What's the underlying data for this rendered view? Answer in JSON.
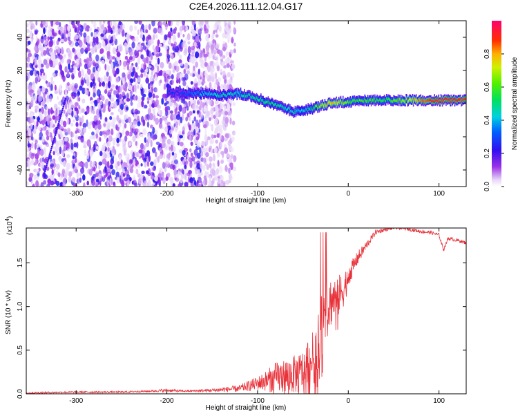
{
  "title": "C2E4.2026.111.12.04.G17",
  "chart_data": [
    {
      "type": "heatmap",
      "xlabel": "Height of straight line (km)",
      "ylabel": "Frequency (Hz)",
      "xlim": [
        -355,
        130
      ],
      "ylim": [
        -50,
        50
      ],
      "xticks": [
        -300,
        -200,
        -100,
        0,
        100
      ],
      "xtick_labels": [
        "-300",
        "-200",
        "-100",
        "0",
        "100"
      ],
      "yticks": [
        -40,
        -20,
        0,
        20,
        40
      ],
      "ytick_labels": [
        "-40",
        "-20",
        "0",
        "20",
        "40"
      ],
      "ridge": {
        "name": "dominant frequency trace",
        "x": [
          -200,
          -180,
          -160,
          -140,
          -120,
          -100,
          -90,
          -80,
          -70,
          -60,
          -50,
          -40,
          -30,
          -20,
          -10,
          0,
          10,
          20,
          40,
          60,
          80,
          100,
          130
        ],
        "y": [
          7,
          6,
          6,
          5,
          6,
          3,
          1,
          -1,
          -3,
          -5,
          -4,
          -3,
          -1,
          0,
          1,
          1,
          1.5,
          2,
          2,
          2,
          2,
          2,
          2
        ],
        "amplitude": [
          0.25,
          0.3,
          0.4,
          0.45,
          0.45,
          0.5,
          0.5,
          0.5,
          0.45,
          0.45,
          0.4,
          0.5,
          0.7,
          0.8,
          0.7,
          0.6,
          0.55,
          0.6,
          0.55,
          0.65,
          0.85,
          0.95,
          0.9
        ]
      },
      "noise_region": {
        "x_from": -355,
        "x_to": -125
      },
      "colorbar": {
        "label": "Normalized spectral amplitude",
        "ticks": [
          0.0,
          0.2,
          0.4,
          0.6,
          0.8
        ],
        "tick_labels": [
          "0.0",
          "0.2",
          "0.4",
          "0.6",
          "0.8"
        ],
        "range": [
          0,
          1
        ]
      }
    },
    {
      "type": "line",
      "xlabel": "Height of straight line (km)",
      "ylabel": "SNR (10 * v/v)",
      "scale_label": "(x10",
      "scale_exp": "4",
      "scale_close": ")",
      "xlim": [
        -355,
        130
      ],
      "ylim": [
        0,
        1.9
      ],
      "xticks": [
        -300,
        -200,
        -100,
        0,
        100
      ],
      "xtick_labels": [
        "-300",
        "-200",
        "-100",
        "0",
        "100"
      ],
      "yticks": [
        0.0,
        0.5,
        1.0,
        1.5
      ],
      "ytick_labels": [
        "0.0",
        "0.5",
        "1.0",
        "1.5"
      ],
      "series": [
        {
          "name": "SNR",
          "color": "#e8323a",
          "x": [
            -355,
            -300,
            -250,
            -220,
            -200,
            -180,
            -150,
            -120,
            -100,
            -90,
            -80,
            -70,
            -60,
            -50,
            -45,
            -40,
            -35,
            -30,
            -25,
            -20,
            -15,
            -10,
            -5,
            0,
            5,
            10,
            20,
            30,
            40,
            50,
            60,
            70,
            80,
            90,
            100,
            105,
            110,
            120,
            130
          ],
          "y": [
            0.01,
            0.02,
            0.02,
            0.03,
            0.04,
            0.03,
            0.04,
            0.06,
            0.12,
            0.15,
            0.18,
            0.2,
            0.22,
            0.25,
            0.3,
            0.38,
            0.5,
            0.7,
            0.95,
            1.05,
            1.1,
            1.12,
            1.2,
            1.35,
            1.45,
            1.55,
            1.7,
            1.85,
            1.88,
            1.9,
            1.9,
            1.88,
            1.86,
            1.85,
            1.82,
            1.65,
            1.78,
            1.76,
            1.73
          ],
          "noise": [
            0.01,
            0.01,
            0.01,
            0.01,
            0.02,
            0.01,
            0.02,
            0.04,
            0.08,
            0.12,
            0.18,
            0.2,
            0.22,
            0.25,
            0.35,
            0.3,
            0.4,
            0.5,
            0.45,
            0.3,
            0.25,
            0.25,
            0.2,
            0.15,
            0.1,
            0.08,
            0.05,
            0.03,
            0.02,
            0.02,
            0.02,
            0.02,
            0.02,
            0.02,
            0.02,
            0.02,
            0.02,
            0.02,
            0.02
          ]
        }
      ]
    }
  ]
}
